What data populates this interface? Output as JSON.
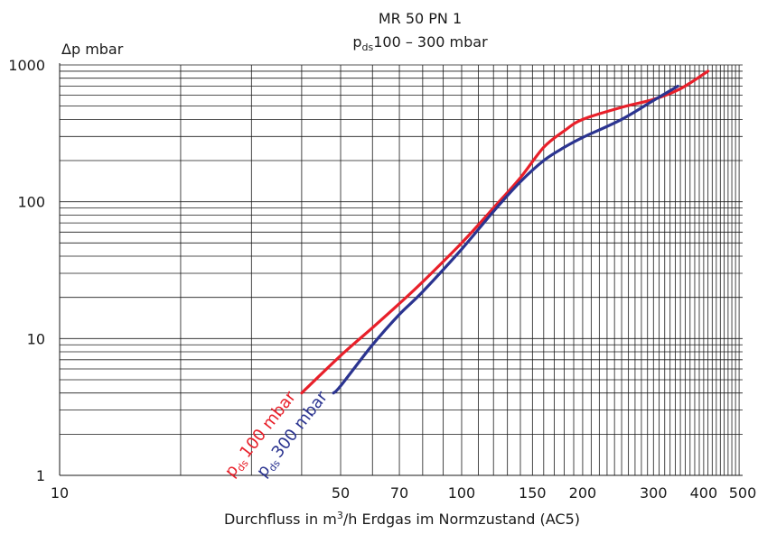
{
  "chart_data": {
    "type": "line",
    "title": "MR 50 PN 1",
    "subtitle": {
      "symbol": "p",
      "subscript": "ds",
      "text": "100 – 300 mbar"
    },
    "ylabel": "Δp mbar",
    "xlabel": {
      "before": "Durchfluss in m",
      "superscript": "3",
      "after": "/h Erdgas im Normzustand (AC5)"
    },
    "xscale": "log",
    "yscale": "log",
    "xlim": [
      10,
      500
    ],
    "ylim": [
      1,
      1000
    ],
    "grid": true,
    "x_ticks": [
      {
        "value": 10,
        "label": "10"
      },
      {
        "value": 50,
        "label": "50"
      },
      {
        "value": 70,
        "label": "70"
      },
      {
        "value": 100,
        "label": "100"
      },
      {
        "value": 150,
        "label": "150"
      },
      {
        "value": 200,
        "label": "200"
      },
      {
        "value": 300,
        "label": "300"
      },
      {
        "value": 400,
        "label": "400"
      },
      {
        "value": 500,
        "label": "500"
      }
    ],
    "y_ticks": [
      {
        "value": 1,
        "label": "1"
      },
      {
        "value": 10,
        "label": "10"
      },
      {
        "value": 100,
        "label": "100"
      },
      {
        "value": 1000,
        "label": "1000"
      }
    ],
    "series": [
      {
        "name": {
          "symbol": "p",
          "subscript": "ds",
          "text": "100 mbar"
        },
        "color": "#e8202a",
        "x": [
          40,
          50,
          60,
          70,
          80,
          100,
          120,
          140,
          160,
          180,
          200,
          250,
          300,
          350,
          410
        ],
        "y": [
          4.0,
          7.5,
          12,
          18,
          26,
          50,
          90,
          150,
          250,
          330,
          400,
          490,
          560,
          670,
          900
        ]
      },
      {
        "name": {
          "symbol": "p",
          "subscript": "ds",
          "text": "300 mbar"
        },
        "color": "#2b3490",
        "x": [
          48,
          50,
          60,
          70,
          80,
          100,
          120,
          140,
          160,
          180,
          200,
          250,
          300,
          345
        ],
        "y": [
          4.0,
          4.5,
          9,
          15,
          22,
          45,
          85,
          140,
          200,
          250,
          295,
          400,
          550,
          700
        ]
      }
    ]
  }
}
